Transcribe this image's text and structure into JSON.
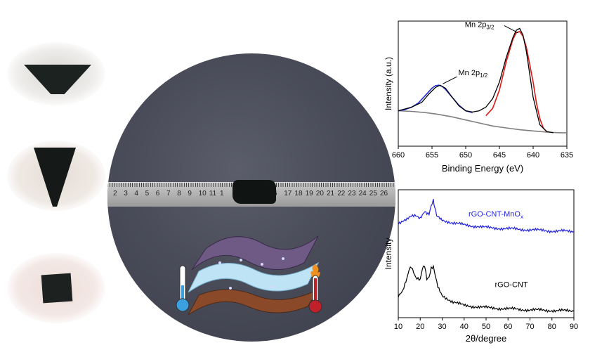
{
  "photos": {
    "ruler_numbers": [
      "2",
      "3",
      "4",
      "5",
      "6",
      "7",
      "8",
      "9",
      "10",
      "11",
      "1",
      "",
      "",
      "",
      "",
      "6",
      "17",
      "18",
      "19",
      "20",
      "21",
      "22",
      "23",
      "24",
      "25",
      "26"
    ]
  },
  "colors": {
    "xps_envelope": "#000000",
    "mn_2p12_fit": "#1f2bd8",
    "mn_2p32_fit": "#e01818",
    "background": "#808080",
    "rgo_cnt_mnox": "#1f1fe0",
    "rgo_cnt": "#000000",
    "thermometer_cold": "#3aa0e0",
    "thermometer_hot": "#c0202a"
  },
  "icons": [
    "thermometer-cold-icon",
    "thermometer-hot-icon",
    "layered-sheets-icon"
  ],
  "chart_data": [
    {
      "type": "line",
      "xlabel": "Binding Energy (eV)",
      "ylabel": "Intensity (a.u.)",
      "xlim": [
        660,
        635
      ],
      "x_ticks": [
        "660",
        "655",
        "650",
        "645",
        "640",
        "635"
      ],
      "annotations": [
        {
          "text_main": "Mn 2p",
          "text_sub": "1/2",
          "x": 653.8
        },
        {
          "text_main": "Mn 2p",
          "text_sub": "3/2",
          "x": 642.0
        }
      ],
      "series": [
        {
          "role": "envelope",
          "x": [
            660,
            658,
            656.5,
            655.5,
            654.5,
            653.8,
            653,
            652,
            651,
            650,
            649,
            648,
            647,
            646,
            645,
            644,
            643,
            642.5,
            642,
            641.5,
            641,
            640,
            639,
            638,
            637
          ],
          "values": [
            0.58,
            0.64,
            0.72,
            0.85,
            0.96,
            1.0,
            0.95,
            0.8,
            0.66,
            0.58,
            0.56,
            0.58,
            0.64,
            0.78,
            1.05,
            1.45,
            1.78,
            1.9,
            1.93,
            1.82,
            1.55,
            0.8,
            0.35,
            0.24,
            0.22
          ]
        },
        {
          "role": "Mn 2p1/2 fit",
          "x": [
            660,
            659,
            658,
            657,
            656,
            655,
            654.5,
            654,
            653.5,
            653,
            652,
            651,
            650,
            649
          ],
          "values": [
            0.58,
            0.6,
            0.64,
            0.71,
            0.83,
            0.95,
            0.99,
            1.0,
            0.98,
            0.93,
            0.8,
            0.67,
            0.58,
            0.55
          ]
        },
        {
          "role": "Mn 2p3/2 fit",
          "x": [
            647,
            646,
            645,
            644,
            643,
            642.5,
            642,
            641.5,
            641,
            640,
            639.5,
            639,
            638.5,
            638
          ],
          "values": [
            0.5,
            0.62,
            0.92,
            1.38,
            1.75,
            1.86,
            1.88,
            1.8,
            1.62,
            1.05,
            0.7,
            0.45,
            0.3,
            0.24
          ]
        },
        {
          "role": "background",
          "x": [
            660,
            658,
            656,
            654,
            652,
            650,
            648,
            646,
            644,
            642,
            640,
            638,
            636,
            635
          ],
          "values": [
            0.58,
            0.57,
            0.55,
            0.52,
            0.48,
            0.43,
            0.38,
            0.33,
            0.3,
            0.27,
            0.25,
            0.23,
            0.22,
            0.22
          ]
        }
      ]
    },
    {
      "type": "line",
      "xlabel": "2θ/degree",
      "ylabel": "Intensity",
      "xlim": [
        10,
        90
      ],
      "x_ticks": [
        "10",
        "20",
        "30",
        "40",
        "50",
        "60",
        "70",
        "80",
        "90"
      ],
      "series": [
        {
          "name": "rGO-CNT-MnOx",
          "x": [
            10,
            14,
            16,
            18,
            20,
            22,
            23,
            24,
            25,
            26,
            26.5,
            27.5,
            30,
            35,
            40,
            50,
            60,
            70,
            80,
            90
          ],
          "values": [
            1.7,
            1.76,
            1.82,
            1.84,
            1.8,
            1.92,
            1.88,
            1.86,
            2.0,
            2.1,
            2.0,
            1.82,
            1.76,
            1.7,
            1.67,
            1.62,
            1.6,
            1.58,
            1.56,
            1.55
          ]
        },
        {
          "name": "rGO-CNT",
          "x": [
            10,
            12,
            14,
            15,
            16,
            18,
            20,
            21,
            22,
            23,
            24,
            25,
            26,
            27,
            28,
            30,
            35,
            40,
            50,
            60,
            70,
            80,
            90
          ],
          "values": [
            0.4,
            0.48,
            0.7,
            0.86,
            0.9,
            0.72,
            0.7,
            0.9,
            0.95,
            0.7,
            0.72,
            0.88,
            0.9,
            0.72,
            0.55,
            0.4,
            0.28,
            0.22,
            0.18,
            0.16,
            0.14,
            0.13,
            0.12
          ]
        }
      ]
    }
  ]
}
